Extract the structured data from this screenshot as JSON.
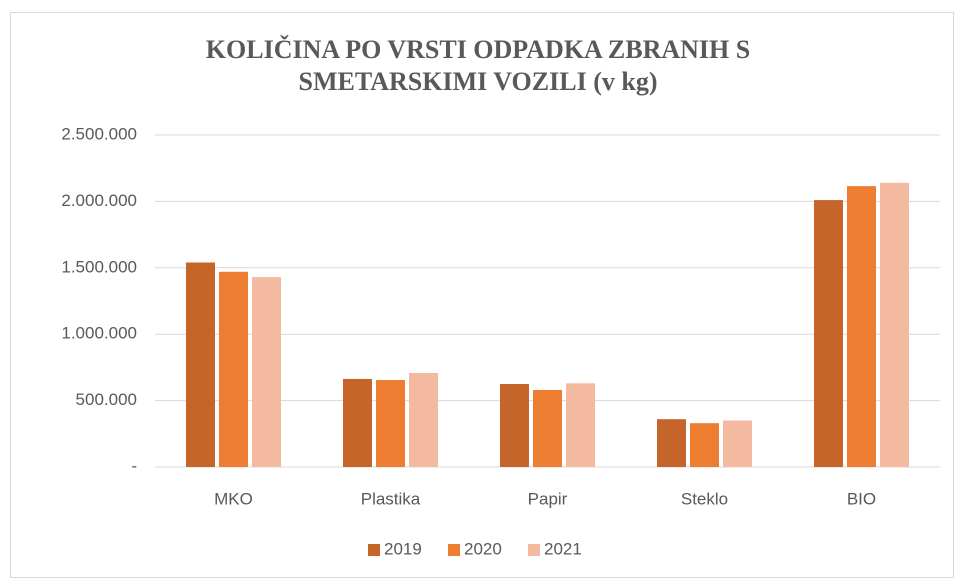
{
  "chart_data": {
    "type": "bar",
    "title": "KOLIČINA PO VRSTI ODPADKA ZBRANIH S SMETARSKIMI VOZILI (v kg)",
    "categories": [
      "MKO",
      "Plastika",
      "Papir",
      "Steklo",
      "BIO"
    ],
    "series": [
      {
        "name": "2019",
        "color": "#c5652a",
        "values": [
          1540000,
          663000,
          625000,
          360000,
          2010000
        ]
      },
      {
        "name": "2020",
        "color": "#ed7d31",
        "values": [
          1470000,
          655000,
          580000,
          330000,
          2115000
        ]
      },
      {
        "name": "2021",
        "color": "#f4b9a1",
        "values": [
          1430000,
          708000,
          630000,
          350000,
          2140000
        ]
      }
    ],
    "ylim": [
      0,
      2500000
    ],
    "yticks": [
      {
        "value": 0,
        "label": "-"
      },
      {
        "value": 500000,
        "label": "500.000"
      },
      {
        "value": 1000000,
        "label": "1.000.000"
      },
      {
        "value": 1500000,
        "label": "1.500.000"
      },
      {
        "value": 2000000,
        "label": "2.000.000"
      },
      {
        "value": 2500000,
        "label": "2.500.000"
      }
    ],
    "grid": true,
    "legend": "bottom"
  }
}
